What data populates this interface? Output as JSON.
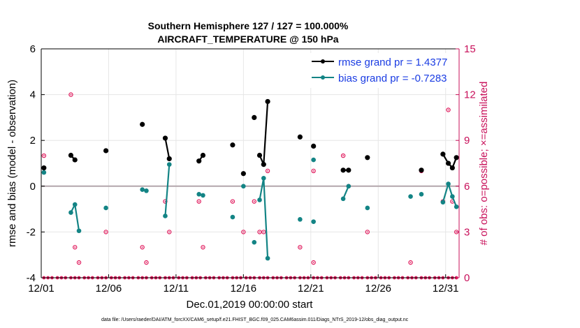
{
  "chart_data": {
    "type": "line",
    "title": "Southern Hemisphere 127 / 127 = 100.000%",
    "subtitle": "AIRCRAFT_TEMPERATURE @ 150 hPa",
    "xlabel": "Dec.01,2019 00:00:00 start",
    "ylabel": "rmse and bias (model - observation)",
    "y2label": "# of obs: o=possible; ×=assimilated",
    "footer": "data file: /Users/raeder/DAI/ATM_forcXX/CAM6_setup/f.e21.FHIST_BGC.f09_025.CAM6assim.011/Diags_NTrS_2019-12/obs_diag_output.nc",
    "xlim": [
      1,
      32
    ],
    "ylim": [
      -4,
      6
    ],
    "y2lim": [
      0,
      15
    ],
    "x_ticks": [
      1,
      6,
      11,
      16,
      21,
      26,
      31
    ],
    "x_tick_labels": [
      "12/01",
      "12/06",
      "12/11",
      "12/16",
      "12/21",
      "12/26",
      "12/31"
    ],
    "y_ticks": [
      -4,
      -2,
      0,
      2,
      4,
      6
    ],
    "y_tick_labels": [
      "-4",
      "-2",
      "0",
      "2",
      "4",
      "6"
    ],
    "y2_ticks": [
      0,
      3,
      6,
      9,
      12,
      15
    ],
    "y2_tick_labels": [
      "0",
      "3",
      "6",
      "9",
      "12",
      "15"
    ],
    "legend_position": "top-right",
    "colors": {
      "rmse": "#000000",
      "bias": "#138485",
      "obs": "#e0195c",
      "zero": "#b3a6ab"
    },
    "series": [
      {
        "name": "rmse grand pr = 1.4377",
        "color": "#000000",
        "points": [
          [
            1.2,
            0.8
          ],
          [
            3.2,
            1.35
          ],
          [
            3.5,
            1.15
          ],
          [
            5.8,
            1.55
          ],
          [
            8.5,
            2.7
          ],
          [
            10.2,
            2.1
          ],
          [
            10.5,
            1.2
          ],
          [
            12.7,
            1.1
          ],
          [
            13,
            1.35
          ],
          [
            15.2,
            1.8
          ],
          [
            16,
            0.55
          ],
          [
            16.8,
            3.0
          ],
          [
            17.2,
            1.35
          ],
          [
            17.5,
            0.95
          ],
          [
            17.8,
            3.7
          ],
          [
            20.2,
            2.15
          ],
          [
            21.2,
            1.75
          ],
          [
            23.4,
            0.7
          ],
          [
            23.8,
            0.7
          ],
          [
            25.2,
            1.25
          ],
          [
            29.2,
            0.7
          ],
          [
            30.8,
            1.4
          ],
          [
            31.2,
            1.0
          ],
          [
            31.5,
            0.8
          ],
          [
            31.8,
            1.25
          ]
        ],
        "connected": [
          [
            1
          ],
          [
            2,
            3
          ],
          [
            4
          ],
          [
            5
          ],
          [
            6,
            7
          ],
          [
            8,
            9
          ],
          [
            10
          ],
          [
            11
          ],
          [
            12
          ],
          [
            13,
            14,
            15
          ],
          [
            16
          ],
          [
            17
          ],
          [
            18,
            19
          ],
          [
            20
          ],
          [
            21
          ],
          [
            22,
            23,
            24,
            25
          ]
        ]
      },
      {
        "name": "bias grand pr = -0.7283",
        "color": "#138485",
        "points": [
          [
            1.2,
            0.6
          ],
          [
            3.2,
            -1.15
          ],
          [
            3.5,
            -0.8
          ],
          [
            3.8,
            -1.95
          ],
          [
            5.8,
            -0.95
          ],
          [
            8.5,
            -0.15
          ],
          [
            8.8,
            -0.2
          ],
          [
            10.2,
            -1.3
          ],
          [
            10.5,
            0.95
          ],
          [
            12.7,
            -0.35
          ],
          [
            13,
            -0.4
          ],
          [
            15.2,
            -1.35
          ],
          [
            16,
            0.0
          ],
          [
            16.8,
            -2.45
          ],
          [
            17.2,
            -0.6
          ],
          [
            17.5,
            0.35
          ],
          [
            17.8,
            -3.15
          ],
          [
            20.2,
            -1.45
          ],
          [
            21.2,
            1.15
          ],
          [
            21.2,
            -1.55
          ],
          [
            23.4,
            -0.55
          ],
          [
            23.8,
            0.0
          ],
          [
            25.2,
            -0.95
          ],
          [
            28.4,
            -0.45
          ],
          [
            29.2,
            -0.35
          ],
          [
            30.8,
            -0.7
          ],
          [
            31.2,
            0.1
          ],
          [
            31.5,
            -0.45
          ],
          [
            31.8,
            -0.9
          ]
        ],
        "connected": [
          [
            1
          ],
          [
            2,
            3,
            4
          ],
          [
            5
          ],
          [
            6,
            7
          ],
          [
            8,
            9
          ],
          [
            10,
            11
          ],
          [
            12
          ],
          [
            13
          ],
          [
            14
          ],
          [
            15,
            16,
            17
          ],
          [
            18
          ],
          [
            19
          ],
          [
            20
          ],
          [
            21,
            22
          ],
          [
            23
          ],
          [
            24
          ],
          [
            25
          ],
          [
            26,
            27,
            28,
            29
          ]
        ]
      },
      {
        "name": "# of obs possible",
        "color": "#e0195c",
        "points": [
          [
            1.2,
            8
          ],
          [
            3.2,
            12
          ],
          [
            3.5,
            2
          ],
          [
            3.8,
            1
          ],
          [
            5.8,
            3
          ],
          [
            8.5,
            2
          ],
          [
            8.8,
            1
          ],
          [
            10.2,
            5
          ],
          [
            10.5,
            3
          ],
          [
            12.7,
            5
          ],
          [
            13,
            2
          ],
          [
            15.2,
            5
          ],
          [
            16,
            3
          ],
          [
            16.8,
            5
          ],
          [
            17.2,
            3
          ],
          [
            17.5,
            3
          ],
          [
            17.8,
            7
          ],
          [
            20.2,
            2
          ],
          [
            21.2,
            1
          ],
          [
            21.2,
            7
          ],
          [
            23.4,
            8
          ],
          [
            23.8,
            6
          ],
          [
            25.2,
            3
          ],
          [
            28.4,
            1
          ],
          [
            29.2,
            7
          ],
          [
            30.8,
            5
          ],
          [
            31.2,
            11
          ],
          [
            31.5,
            5
          ],
          [
            31.8,
            3
          ]
        ]
      },
      {
        "name": "# of obs assimilated",
        "color": "#e0195c",
        "points": [
          [
            1.2,
            0
          ],
          [
            1.5,
            0
          ],
          [
            1.8,
            0
          ],
          [
            2.2,
            0
          ],
          [
            2.5,
            0
          ],
          [
            2.8,
            0
          ],
          [
            3.2,
            0
          ],
          [
            3.5,
            0
          ],
          [
            3.8,
            0
          ],
          [
            4.2,
            0
          ],
          [
            4.5,
            0
          ],
          [
            4.8,
            0
          ],
          [
            5.2,
            0
          ],
          [
            5.5,
            0
          ],
          [
            5.8,
            0
          ],
          [
            6.2,
            0
          ],
          [
            6.5,
            0
          ],
          [
            6.8,
            0
          ],
          [
            7.2,
            0
          ],
          [
            7.5,
            0
          ],
          [
            7.8,
            0
          ],
          [
            8.2,
            0
          ],
          [
            8.5,
            0
          ],
          [
            8.8,
            0
          ],
          [
            9.2,
            0
          ],
          [
            9.5,
            0
          ],
          [
            9.8,
            0
          ],
          [
            10.2,
            0
          ],
          [
            10.5,
            0
          ],
          [
            10.8,
            0
          ],
          [
            11.2,
            0
          ],
          [
            11.5,
            0
          ],
          [
            11.8,
            0
          ],
          [
            12.2,
            0
          ],
          [
            12.5,
            0
          ],
          [
            12.8,
            0
          ],
          [
            13.2,
            0
          ],
          [
            13.5,
            0
          ],
          [
            13.8,
            0
          ],
          [
            14.2,
            0
          ],
          [
            14.5,
            0
          ],
          [
            14.8,
            0
          ],
          [
            15.2,
            0
          ],
          [
            15.5,
            0
          ],
          [
            15.8,
            0
          ],
          [
            16.2,
            0
          ],
          [
            16.5,
            0
          ],
          [
            16.8,
            0
          ],
          [
            17.2,
            0
          ],
          [
            17.5,
            0
          ],
          [
            17.8,
            0
          ],
          [
            18.2,
            0
          ],
          [
            18.5,
            0
          ],
          [
            18.8,
            0
          ],
          [
            19.2,
            0
          ],
          [
            19.5,
            0
          ],
          [
            19.8,
            0
          ],
          [
            20.2,
            0
          ],
          [
            20.5,
            0
          ],
          [
            20.8,
            0
          ],
          [
            21.2,
            0
          ],
          [
            21.5,
            0
          ],
          [
            21.8,
            0
          ],
          [
            22.2,
            0
          ],
          [
            22.5,
            0
          ],
          [
            22.8,
            0
          ],
          [
            23.2,
            0
          ],
          [
            23.5,
            0
          ],
          [
            23.8,
            0
          ],
          [
            24.2,
            0
          ],
          [
            24.5,
            0
          ],
          [
            24.8,
            0
          ],
          [
            25.2,
            0
          ],
          [
            25.5,
            0
          ],
          [
            25.8,
            0
          ],
          [
            26.2,
            0
          ],
          [
            26.5,
            0
          ],
          [
            26.8,
            0
          ],
          [
            27.2,
            0
          ],
          [
            27.5,
            0
          ],
          [
            27.8,
            0
          ],
          [
            28.2,
            0
          ],
          [
            28.5,
            0
          ],
          [
            28.8,
            0
          ],
          [
            29.2,
            0
          ],
          [
            29.5,
            0
          ],
          [
            29.8,
            0
          ],
          [
            30.2,
            0
          ],
          [
            30.5,
            0
          ],
          [
            30.8,
            0
          ],
          [
            31.2,
            0
          ],
          [
            31.5,
            0
          ],
          [
            31.8,
            0
          ]
        ]
      }
    ]
  }
}
